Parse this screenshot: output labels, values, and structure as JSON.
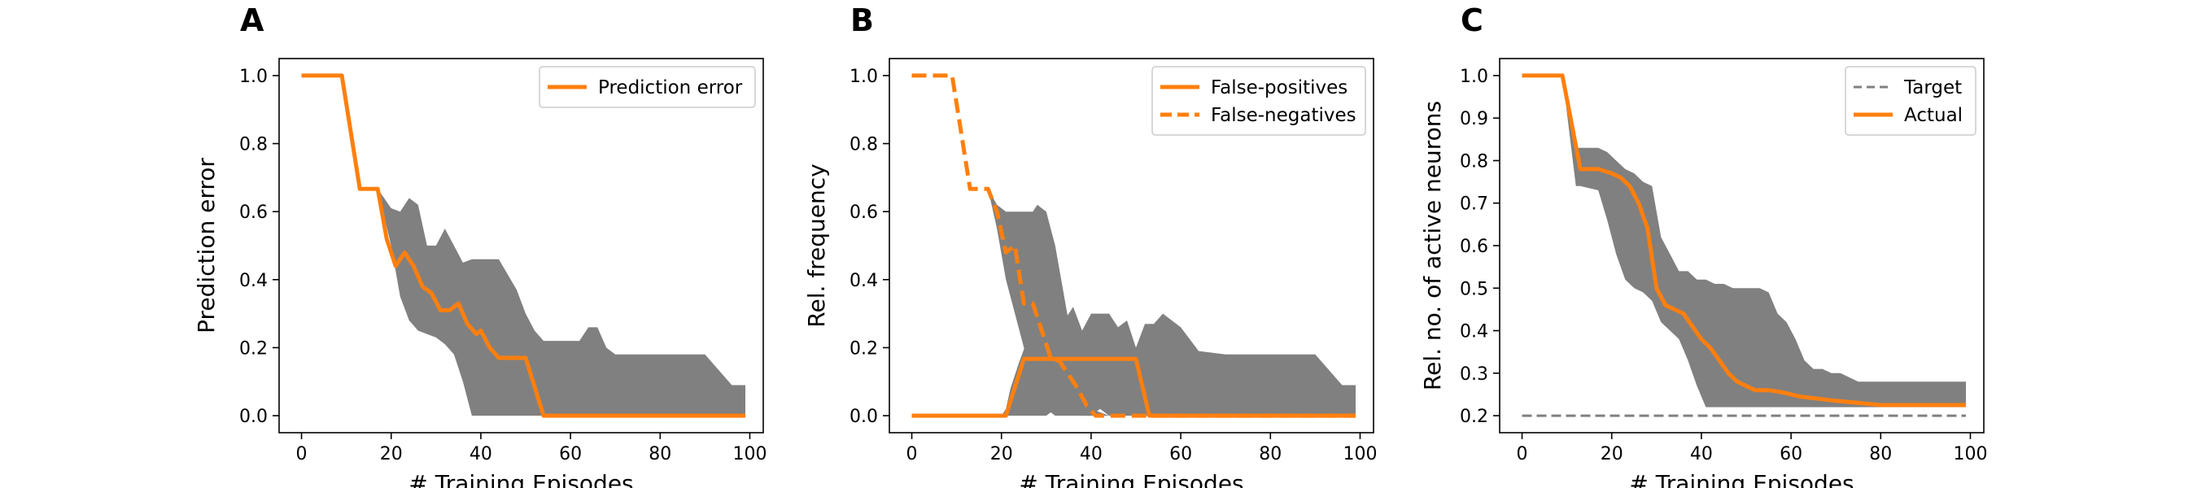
{
  "figure": {
    "colors": {
      "line": "#ff7f0e",
      "band": "#808080",
      "target": "#808080"
    }
  },
  "chart_data": [
    {
      "panel": "A",
      "type": "line",
      "xlabel": "# Training Episodes",
      "ylabel": "Prediction error",
      "xlim": [
        -5,
        103
      ],
      "ylim": [
        -0.05,
        1.05
      ],
      "xticks": [
        0,
        20,
        40,
        60,
        80,
        100
      ],
      "xtick_labels": [
        "0",
        "20",
        "40",
        "60",
        "80",
        "100"
      ],
      "yticks": [
        0.0,
        0.2,
        0.4,
        0.6,
        0.8,
        1.0
      ],
      "ytick_labels": [
        "0.0",
        "0.2",
        "0.4",
        "0.6",
        "0.8",
        "1.0"
      ],
      "grid": false,
      "legend": "top-right",
      "bands": [
        {
          "x": [
            0,
            9,
            13,
            17,
            20,
            22,
            24,
            26,
            28,
            30,
            32,
            34,
            36,
            38,
            40,
            44,
            48,
            50,
            52,
            54,
            56,
            58,
            60,
            62,
            64,
            66,
            68,
            70,
            80,
            90,
            96,
            99
          ],
          "upper": [
            1.0,
            1.0,
            0.667,
            0.667,
            0.61,
            0.6,
            0.64,
            0.62,
            0.5,
            0.5,
            0.55,
            0.5,
            0.45,
            0.46,
            0.46,
            0.46,
            0.37,
            0.3,
            0.25,
            0.22,
            0.22,
            0.22,
            0.22,
            0.22,
            0.26,
            0.26,
            0.2,
            0.18,
            0.18,
            0.18,
            0.09,
            0.09
          ],
          "lower": [
            1.0,
            1.0,
            0.667,
            0.667,
            0.5,
            0.35,
            0.28,
            0.25,
            0.24,
            0.23,
            0.21,
            0.18,
            0.1,
            0.0,
            0.0,
            0.0,
            0.0,
            0.0,
            0.0,
            0.0,
            0.0,
            0.0,
            0.0,
            0.0,
            0.0,
            0.0,
            0.0,
            0.0,
            0.0,
            0.0,
            0.0,
            0.0
          ]
        }
      ],
      "series": [
        {
          "name": "Prediction error",
          "dash": false,
          "x": [
            0,
            9,
            13,
            17,
            19,
            21,
            23,
            25,
            27,
            29,
            31,
            33,
            35,
            37,
            39,
            40,
            42,
            44,
            50,
            54,
            60,
            70,
            80,
            90,
            99
          ],
          "y": [
            1.0,
            1.0,
            0.667,
            0.667,
            0.52,
            0.44,
            0.48,
            0.44,
            0.38,
            0.36,
            0.31,
            0.31,
            0.33,
            0.27,
            0.24,
            0.25,
            0.2,
            0.17,
            0.17,
            0.0,
            0.0,
            0.0,
            0.0,
            0.0,
            0.0
          ]
        }
      ]
    },
    {
      "panel": "B",
      "type": "line",
      "xlabel": "# Training Episodes",
      "ylabel": "Rel. frequency",
      "xlim": [
        -5,
        103
      ],
      "ylim": [
        -0.05,
        1.05
      ],
      "xticks": [
        0,
        20,
        40,
        60,
        80,
        100
      ],
      "xtick_labels": [
        "0",
        "20",
        "40",
        "60",
        "80",
        "100"
      ],
      "yticks": [
        0.0,
        0.2,
        0.4,
        0.6,
        0.8,
        1.0
      ],
      "ytick_labels": [
        "0.0",
        "0.2",
        "0.4",
        "0.6",
        "0.8",
        "1.0"
      ],
      "grid": false,
      "legend": "top-right",
      "bands": [
        {
          "x": [
            0,
            9,
            13,
            17,
            19,
            21,
            23,
            25,
            27,
            28,
            30,
            32,
            34,
            36,
            38,
            40,
            44
          ],
          "upper": [
            1.0,
            1.0,
            0.667,
            0.667,
            0.62,
            0.6,
            0.6,
            0.6,
            0.6,
            0.62,
            0.6,
            0.5,
            0.35,
            0.2,
            0.1,
            0.02,
            0.0
          ],
          "lower": [
            1.0,
            1.0,
            0.667,
            0.667,
            0.55,
            0.4,
            0.3,
            0.2,
            0.1,
            0.05,
            0.02,
            0.0,
            0.0,
            0.0,
            0.0,
            0.0,
            0.0
          ]
        },
        {
          "x": [
            0,
            20,
            21,
            22,
            24,
            26,
            28,
            30,
            32,
            34,
            36,
            38,
            40,
            42,
            44,
            46,
            48,
            50,
            52,
            54,
            56,
            60,
            64,
            70,
            80,
            90,
            96,
            99
          ],
          "upper": [
            0.0,
            0.0,
            0.02,
            0.08,
            0.16,
            0.23,
            0.3,
            0.26,
            0.33,
            0.28,
            0.32,
            0.25,
            0.3,
            0.3,
            0.3,
            0.26,
            0.28,
            0.2,
            0.27,
            0.27,
            0.3,
            0.26,
            0.19,
            0.18,
            0.18,
            0.18,
            0.09,
            0.09
          ],
          "lower": [
            0.0,
            0.0,
            0.0,
            0.0,
            0.0,
            0.0,
            0.0,
            0.0,
            0.02,
            0.0,
            0.02,
            0.0,
            0.0,
            0.02,
            0.0,
            0.0,
            0.0,
            0.0,
            0.0,
            0.0,
            0.0,
            0.0,
            0.0,
            0.0,
            0.0,
            0.0,
            0.0,
            0.0
          ]
        }
      ],
      "series": [
        {
          "name": "False-positives",
          "dash": false,
          "x": [
            0,
            21,
            25,
            50,
            53,
            99
          ],
          "y": [
            0.0,
            0.0,
            0.167,
            0.167,
            0.0,
            0.0
          ]
        },
        {
          "name": "False-negatives",
          "dash": true,
          "x": [
            0,
            9,
            13,
            17,
            19,
            21,
            23,
            25,
            27,
            29,
            31,
            33,
            35,
            37,
            39,
            41,
            43,
            44,
            46,
            99
          ],
          "y": [
            1.0,
            1.0,
            0.667,
            0.667,
            0.6,
            0.48,
            0.5,
            0.33,
            0.33,
            0.25,
            0.17,
            0.16,
            0.12,
            0.08,
            0.03,
            0.0,
            0.0,
            0.0,
            0.0,
            0.0
          ]
        }
      ]
    },
    {
      "panel": "C",
      "type": "line",
      "xlabel": "# Training Episodes",
      "ylabel": "Rel. no. of active neurons",
      "xlim": [
        -5,
        103
      ],
      "ylim": [
        0.16,
        1.04
      ],
      "xticks": [
        0,
        20,
        40,
        60,
        80,
        100
      ],
      "xtick_labels": [
        "0",
        "20",
        "40",
        "60",
        "80",
        "100"
      ],
      "yticks": [
        0.2,
        0.3,
        0.4,
        0.5,
        0.6,
        0.7,
        0.8,
        0.9,
        1.0
      ],
      "ytick_labels": [
        "0.2",
        "0.3",
        "0.4",
        "0.5",
        "0.6",
        "0.7",
        "0.8",
        "0.9",
        "1.0"
      ],
      "grid": false,
      "legend": "top-right",
      "bands": [
        {
          "x": [
            0,
            9,
            12,
            13,
            17,
            19,
            21,
            23,
            25,
            27,
            29,
            31,
            33,
            35,
            37,
            39,
            41,
            43,
            45,
            47,
            49,
            51,
            53,
            55,
            57,
            59,
            61,
            63,
            65,
            67,
            69,
            71,
            73,
            75,
            80,
            85,
            90,
            95,
            99
          ],
          "upper": [
            1.0,
            1.0,
            0.83,
            0.83,
            0.83,
            0.82,
            0.8,
            0.78,
            0.77,
            0.75,
            0.74,
            0.62,
            0.58,
            0.54,
            0.54,
            0.52,
            0.52,
            0.51,
            0.51,
            0.5,
            0.5,
            0.5,
            0.5,
            0.49,
            0.44,
            0.42,
            0.38,
            0.33,
            0.31,
            0.31,
            0.3,
            0.3,
            0.29,
            0.28,
            0.28,
            0.28,
            0.28,
            0.28,
            0.28
          ],
          "lower": [
            1.0,
            1.0,
            0.74,
            0.74,
            0.73,
            0.66,
            0.58,
            0.52,
            0.5,
            0.49,
            0.47,
            0.42,
            0.4,
            0.38,
            0.33,
            0.27,
            0.22,
            0.22,
            0.22,
            0.22,
            0.22,
            0.22,
            0.22,
            0.22,
            0.22,
            0.22,
            0.22,
            0.22,
            0.22,
            0.22,
            0.22,
            0.22,
            0.22,
            0.22,
            0.22,
            0.22,
            0.22,
            0.22,
            0.22
          ]
        }
      ],
      "series": [
        {
          "name": "Target",
          "dash": true,
          "style": "target",
          "x": [
            0,
            99
          ],
          "y": [
            0.2,
            0.2
          ]
        },
        {
          "name": "Actual",
          "dash": false,
          "x": [
            0,
            9,
            13,
            17,
            20,
            22,
            24,
            26,
            28,
            30,
            32,
            34,
            36,
            38,
            40,
            42,
            44,
            46,
            48,
            50,
            52,
            55,
            58,
            62,
            66,
            70,
            75,
            80,
            90,
            99
          ],
          "y": [
            1.0,
            1.0,
            0.78,
            0.78,
            0.77,
            0.76,
            0.74,
            0.7,
            0.64,
            0.5,
            0.46,
            0.45,
            0.44,
            0.41,
            0.38,
            0.36,
            0.33,
            0.3,
            0.28,
            0.27,
            0.26,
            0.26,
            0.255,
            0.245,
            0.24,
            0.235,
            0.23,
            0.225,
            0.225,
            0.225
          ]
        }
      ]
    }
  ]
}
